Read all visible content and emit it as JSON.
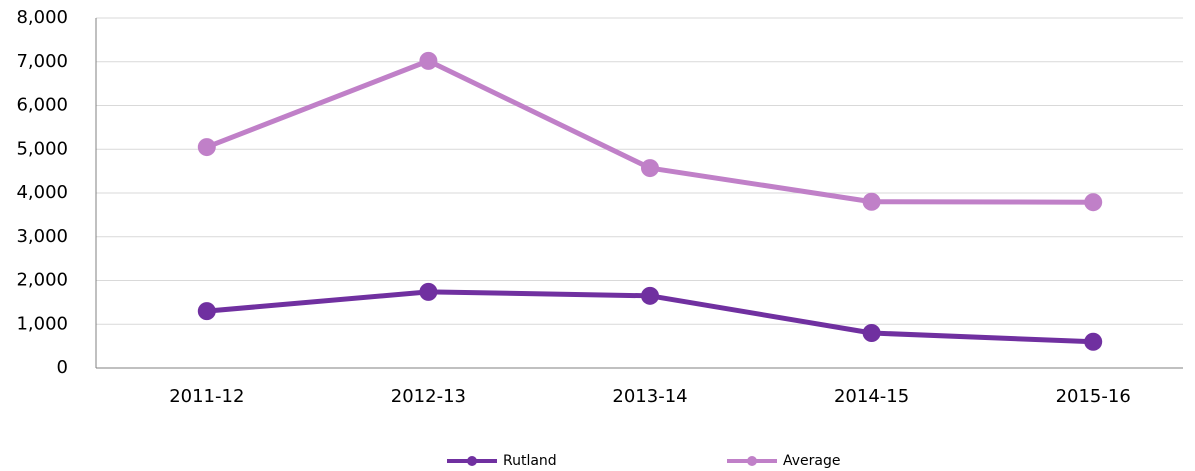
{
  "chart_data": {
    "type": "line",
    "categories": [
      "2011-12",
      "2012-13",
      "2013-14",
      "2014-15",
      "2015-16"
    ],
    "series": [
      {
        "name": "Rutland",
        "color": "#7030a0",
        "values": [
          1300,
          1740,
          1650,
          800,
          600
        ]
      },
      {
        "name": "Average",
        "color": "#c080c8",
        "values": [
          5050,
          7020,
          4570,
          3800,
          3790
        ]
      }
    ],
    "ylim": [
      0,
      8000
    ],
    "yticks": [
      0,
      {
        "value": 1000,
        "label": "1,000"
      },
      {
        "value": 2000,
        "label": "2,000"
      },
      {
        "value": 3000,
        "label": "3,000"
      },
      {
        "value": 4000,
        "label": "4,000"
      },
      {
        "value": 5000,
        "label": "5,000"
      },
      {
        "value": 6000,
        "label": "6,000"
      },
      {
        "value": 7000,
        "label": "7,000"
      },
      {
        "value": 8000,
        "label": "8,000"
      }
    ],
    "grid": true,
    "legend": "bottom"
  }
}
